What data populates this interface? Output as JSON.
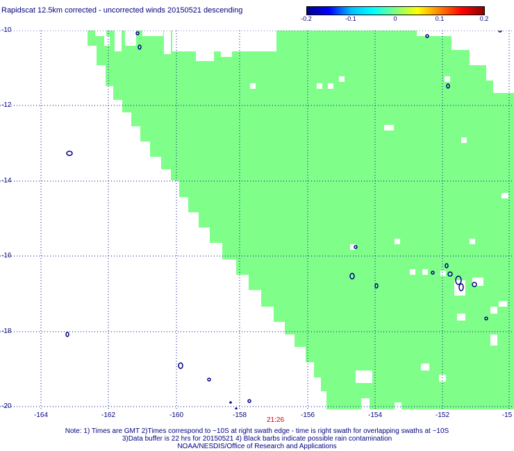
{
  "title": "Rapidscat 12.5km corrected - uncorrected winds 20150521 descending",
  "colorbar": {
    "ticks": [
      "-0.2",
      "-0.1",
      "0",
      "0.1",
      "0.2"
    ],
    "colors": [
      "#00008b",
      "#0000ff",
      "#00bfff",
      "#00ffff",
      "#7fff7f",
      "#ffff00",
      "#ff8000",
      "#ff0000",
      "#8b0000"
    ]
  },
  "map": {
    "lat_labels": [
      "-10",
      "-12",
      "-14",
      "-16",
      "-18",
      "-20"
    ],
    "lon_labels": [
      "-164",
      "-162",
      "-160",
      "-158",
      "-156",
      "-154",
      "-152",
      "-15"
    ],
    "time_label": "21:26",
    "swath_color": "#7fff8a",
    "grid_color": "#00008b",
    "island_color": "#000080"
  },
  "notes": {
    "line1": "Note: 1) Times are GMT 2)Times correspond to ~10S at right swath edge - time is right swath for overlapping swaths at ~10S",
    "line2": "3)Data buffer is 22 hrs for 20150521 4) Black barbs indicate possible rain contamination",
    "line3": "NOAA/NESDIS/Office of Research and Applications"
  }
}
